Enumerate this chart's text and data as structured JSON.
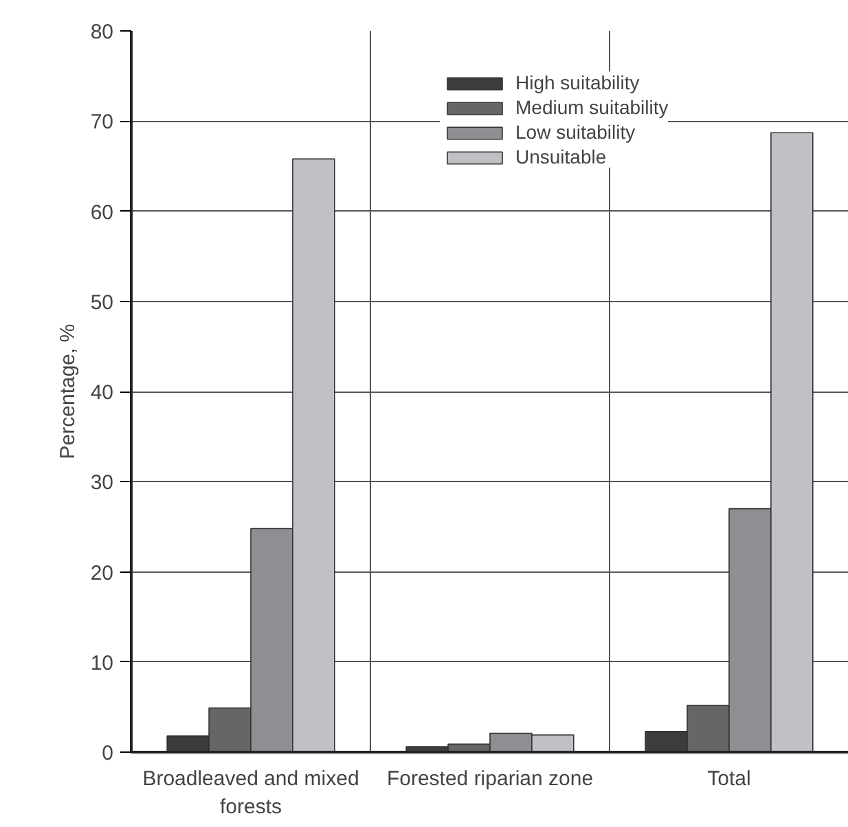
{
  "chart_data": {
    "type": "bar",
    "ylabel": "Percentage, %",
    "categories": [
      "Broadleaved and mixed forests",
      "Forested riparian zone",
      "Total"
    ],
    "series": [
      {
        "name": "High suitability",
        "color": "#3c3c3c",
        "values": [
          1.8,
          0.6,
          2.3
        ]
      },
      {
        "name": "Medium suitability",
        "color": "#666666",
        "values": [
          4.9,
          0.9,
          5.2
        ]
      },
      {
        "name": "Low suitability",
        "color": "#8e8f93",
        "values": [
          24.8,
          2.1,
          27.0
        ]
      },
      {
        "name": "Unsuitable",
        "color": "#c0c1c5",
        "values": [
          65.8,
          1.9,
          68.7
        ]
      }
    ],
    "ylim": [
      0,
      80
    ],
    "yticks": [
      0,
      10,
      20,
      30,
      40,
      50,
      60,
      70,
      80
    ],
    "grid": true,
    "legend": "top right"
  }
}
